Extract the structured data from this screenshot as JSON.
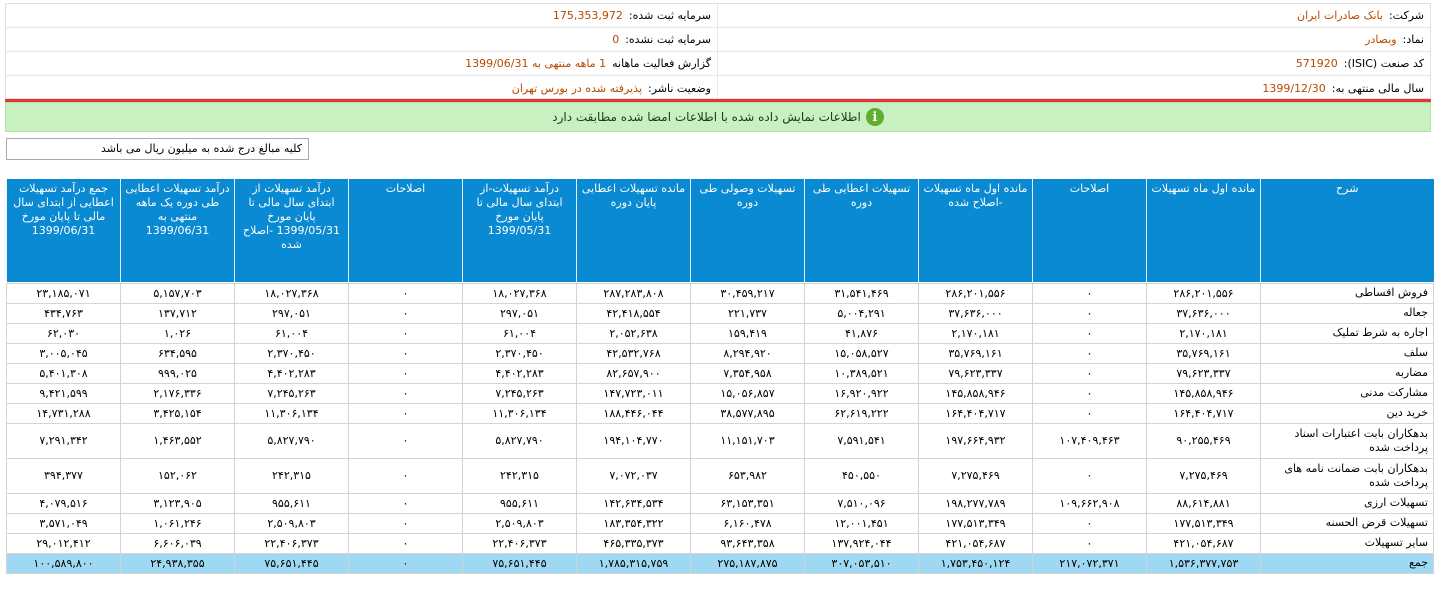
{
  "company_info": {
    "company_label": "شرکت:",
    "company_value": "بانک صادرات ایران",
    "registered_capital_label": "سرمایه ثبت شده:",
    "registered_capital_value": "175,353,972",
    "symbol_label": "نماد:",
    "symbol_value": "وبصادر",
    "unregistered_capital_label": "سرمایه ثبت نشده:",
    "unregistered_capital_value": "0",
    "isic_label": "کد صنعت (ISIC):",
    "isic_value": "571920",
    "report_label": "گزارش فعالیت ماهانه",
    "report_value": "1 ماهه منتهی به 1399/06/31",
    "fiscal_year_label": "سال مالی منتهی به:",
    "fiscal_year_value": "1399/12/30",
    "publisher_status_label": "وضعیت ناشر:",
    "publisher_status_value": "پذیرفته شده در بورس تهران"
  },
  "banner": {
    "icon": "info-icon",
    "text": "اطلاعات نمایش داده شده با اطلاعات امضا شده مطابقت دارد"
  },
  "unit_note": "کلیه مبالغ درج شده به میلیون ریال می باشد",
  "table": {
    "headers": [
      "شرح",
      "مانده اول ماه تسهیلات",
      "اصلاحات",
      "مانده اول ماه تسهیلات -اصلاح شده",
      "تسهیلات اعطایی طی دوره",
      "تسهیلات وصولی طی دوره",
      "مانده تسهیلات اعطایی پایان دوره",
      "درآمد تسهیلات-از ابتدای سال مالی تا پایان مورخ 1399/05/31",
      "اصلاحات",
      "درآمد تسهیلات از ابتدای سال مالی تا پایان مورخ 1399/05/31 -اصلاح شده",
      "درآمد تسهیلات اعطایی طی دوره یک ماهه منتهی به 1399/06/31",
      "جمع درآمد تسهیلات اعطایی از ابتدای سال مالی تا پایان مورخ 1399/06/31"
    ],
    "rows": [
      [
        "فروش اقساطی",
        "۲۸۶,۲۰۱,۵۵۶",
        "۰",
        "۲۸۶,۲۰۱,۵۵۶",
        "۳۱,۵۴۱,۴۶۹",
        "۳۰,۴۵۹,۲۱۷",
        "۲۸۷,۲۸۳,۸۰۸",
        "۱۸,۰۲۷,۳۶۸",
        "۰",
        "۱۸,۰۲۷,۳۶۸",
        "۵,۱۵۷,۷۰۳",
        "۲۳,۱۸۵,۰۷۱"
      ],
      [
        "جعاله",
        "۳۷,۶۳۶,۰۰۰",
        "۰",
        "۳۷,۶۳۶,۰۰۰",
        "۵,۰۰۴,۲۹۱",
        "۲۲۱,۷۳۷",
        "۴۲,۴۱۸,۵۵۴",
        "۲۹۷,۰۵۱",
        "۰",
        "۲۹۷,۰۵۱",
        "۱۳۷,۷۱۲",
        "۴۳۴,۷۶۳"
      ],
      [
        "اجاره به شرط تملیک",
        "۲,۱۷۰,۱۸۱",
        "۰",
        "۲,۱۷۰,۱۸۱",
        "۴۱,۸۷۶",
        "۱۵۹,۴۱۹",
        "۲,۰۵۲,۶۳۸",
        "۶۱,۰۰۴",
        "۰",
        "۶۱,۰۰۴",
        "۱,۰۲۶",
        "۶۲,۰۳۰"
      ],
      [
        "سلف",
        "۳۵,۷۶۹,۱۶۱",
        "۰",
        "۳۵,۷۶۹,۱۶۱",
        "۱۵,۰۵۸,۵۲۷",
        "۸,۲۹۴,۹۲۰",
        "۴۲,۵۳۲,۷۶۸",
        "۲,۳۷۰,۴۵۰",
        "۰",
        "۲,۳۷۰,۴۵۰",
        "۶۳۴,۵۹۵",
        "۳,۰۰۵,۰۴۵"
      ],
      [
        "مضاربه",
        "۷۹,۶۲۳,۳۳۷",
        "۰",
        "۷۹,۶۲۳,۳۳۷",
        "۱۰,۳۸۹,۵۲۱",
        "۷,۳۵۴,۹۵۸",
        "۸۲,۶۵۷,۹۰۰",
        "۴,۴۰۲,۲۸۳",
        "۰",
        "۴,۴۰۲,۲۸۳",
        "۹۹۹,۰۲۵",
        "۵,۴۰۱,۳۰۸"
      ],
      [
        "مشارکت مدنی",
        "۱۴۵,۸۵۸,۹۴۶",
        "۰",
        "۱۴۵,۸۵۸,۹۴۶",
        "۱۶,۹۲۰,۹۲۲",
        "۱۵,۰۵۶,۸۵۷",
        "۱۴۷,۷۲۳,۰۱۱",
        "۷,۲۴۵,۲۶۳",
        "۰",
        "۷,۲۴۵,۲۶۳",
        "۲,۱۷۶,۳۳۶",
        "۹,۴۲۱,۵۹۹"
      ],
      [
        "خرید دین",
        "۱۶۴,۴۰۴,۷۱۷",
        "۰",
        "۱۶۴,۴۰۴,۷۱۷",
        "۶۲,۶۱۹,۲۲۲",
        "۳۸,۵۷۷,۸۹۵",
        "۱۸۸,۴۴۶,۰۴۴",
        "۱۱,۳۰۶,۱۳۴",
        "۰",
        "۱۱,۳۰۶,۱۳۴",
        "۳,۴۲۵,۱۵۴",
        "۱۴,۷۳۱,۲۸۸"
      ],
      [
        "بدهکاران بابت اعتبارات اسناد پرداخت شده",
        "۹۰,۲۵۵,۴۶۹",
        "۱۰۷,۴۰۹,۴۶۳",
        "۱۹۷,۶۶۴,۹۳۲",
        "۷,۵۹۱,۵۴۱",
        "۱۱,۱۵۱,۷۰۳",
        "۱۹۴,۱۰۴,۷۷۰",
        "۵,۸۲۷,۷۹۰",
        "۰",
        "۵,۸۲۷,۷۹۰",
        "۱,۴۶۳,۵۵۲",
        "۷,۲۹۱,۳۴۲"
      ],
      [
        "بدهکاران بابت ضمانت نامه های پرداخت شده",
        "۷,۲۷۵,۴۶۹",
        "۰",
        "۷,۲۷۵,۴۶۹",
        "۴۵۰,۵۵۰",
        "۶۵۳,۹۸۲",
        "۷,۰۷۲,۰۳۷",
        "۲۴۲,۳۱۵",
        "۰",
        "۲۴۲,۳۱۵",
        "۱۵۲,۰۶۲",
        "۳۹۴,۳۷۷"
      ],
      [
        "تسهیلات ارزی",
        "۸۸,۶۱۴,۸۸۱",
        "۱۰۹,۶۶۲,۹۰۸",
        "۱۹۸,۲۷۷,۷۸۹",
        "۷,۵۱۰,۰۹۶",
        "۶۳,۱۵۳,۳۵۱",
        "۱۴۲,۶۳۴,۵۳۴",
        "۹۵۵,۶۱۱",
        "۰",
        "۹۵۵,۶۱۱",
        "۳,۱۲۳,۹۰۵",
        "۴,۰۷۹,۵۱۶"
      ],
      [
        "تسهیلات قرض الحسنه",
        "۱۷۷,۵۱۳,۳۴۹",
        "۰",
        "۱۷۷,۵۱۳,۳۴۹",
        "۱۲,۰۰۱,۴۵۱",
        "۶,۱۶۰,۴۷۸",
        "۱۸۳,۳۵۴,۳۲۲",
        "۲,۵۰۹,۸۰۳",
        "۰",
        "۲,۵۰۹,۸۰۳",
        "۱,۰۶۱,۲۴۶",
        "۳,۵۷۱,۰۴۹"
      ],
      [
        "سایر تسهیلات",
        "۴۲۱,۰۵۴,۶۸۷",
        "۰",
        "۴۲۱,۰۵۴,۶۸۷",
        "۱۳۷,۹۲۴,۰۴۴",
        "۹۳,۶۴۳,۳۵۸",
        "۴۶۵,۳۳۵,۳۷۳",
        "۲۲,۴۰۶,۳۷۳",
        "۰",
        "۲۲,۴۰۶,۳۷۳",
        "۶,۶۰۶,۰۳۹",
        "۲۹,۰۱۲,۴۱۲"
      ]
    ],
    "total": [
      "جمع",
      "۱,۵۳۶,۳۷۷,۷۵۳",
      "۲۱۷,۰۷۲,۳۷۱",
      "۱,۷۵۳,۴۵۰,۱۲۴",
      "۳۰۷,۰۵۳,۵۱۰",
      "۲۷۵,۱۸۷,۸۷۵",
      "۱,۷۸۵,۳۱۵,۷۵۹",
      "۷۵,۶۵۱,۴۴۵",
      "۰",
      "۷۵,۶۵۱,۴۴۵",
      "۲۴,۹۳۸,۳۵۵",
      "۱۰۰,۵۸۹,۸۰۰"
    ]
  }
}
